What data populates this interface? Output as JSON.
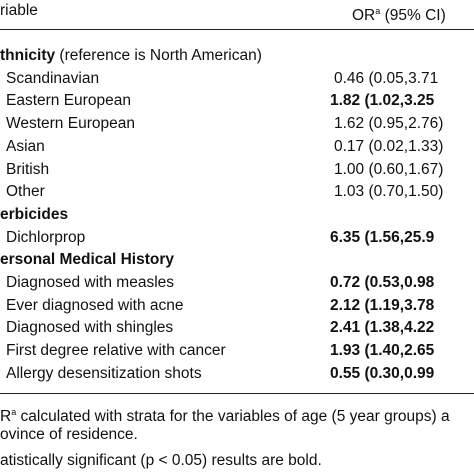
{
  "header": {
    "variable": "riable",
    "or": "OR",
    "or_sup": "a",
    "or_rest": " (95% CI)"
  },
  "sections": [
    {
      "title": "thnicity",
      "note": " (reference is North American)",
      "rows": [
        {
          "label": "Scandinavian",
          "value": "0.46 (0.05,3.71",
          "bold": false
        },
        {
          "label": "Eastern European",
          "value": "1.82 (1.02,3.25",
          "bold": true
        },
        {
          "label": "Western European",
          "value": "1.62 (0.95,2.76)",
          "bold": false
        },
        {
          "label": "Asian",
          "value": "0.17 (0.02,1.33)",
          "bold": false
        },
        {
          "label": "British",
          "value": "1.00 (0.60,1.67)",
          "bold": false
        },
        {
          "label": "Other",
          "value": "1.03 (0.70,1.50)",
          "bold": false
        }
      ]
    },
    {
      "title": "erbicides",
      "rows": [
        {
          "label": "Dichlorprop",
          "value": "6.35 (1.56,25.9",
          "bold": true
        }
      ]
    },
    {
      "title": "ersonal Medical History",
      "rows": [
        {
          "label": "Diagnosed with measles",
          "value": "0.72 (0.53,0.98",
          "bold": true
        },
        {
          "label": "Ever diagnosed with acne",
          "value": "2.12 (1.19,3.78",
          "bold": true
        },
        {
          "label": "Diagnosed with shingles",
          "value": "2.41 (1.38,4.22",
          "bold": true
        },
        {
          "label": "First degree relative with cancer",
          "value": "1.93 (1.40,2.65",
          "bold": true
        },
        {
          "label": "Allergy desensitization shots",
          "value": "0.55 (0.30,0.99",
          "bold": true
        }
      ]
    }
  ],
  "footnotes": {
    "line1_start": "R",
    "line1_sup": "a",
    "line1_rest": " calculated with strata for the variables of age (5 year groups) a",
    "line2": "ovince of residence.",
    "line3": "atistically significant (p < 0.05) results are bold."
  }
}
